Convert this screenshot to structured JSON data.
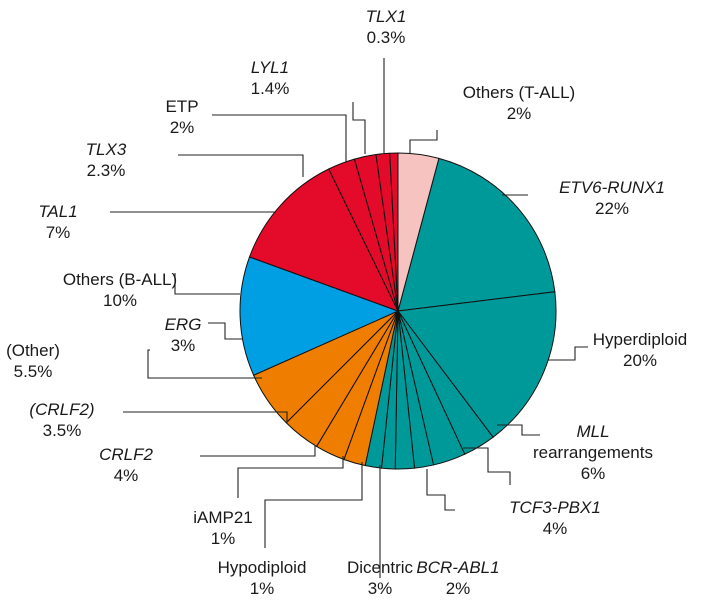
{
  "chart_data": {
    "type": "pie",
    "colors": {
      "teal": "#009999",
      "orange": "#ef7d00",
      "blue": "#009fe3",
      "red": "#e30a2a",
      "pink": "#f6c3c0"
    },
    "slices": [
      {
        "id": "etv6",
        "name": "ETV6-RUNX1",
        "value": 22,
        "pct": "22%",
        "color": "#009999",
        "italic": true
      },
      {
        "id": "hyper",
        "name": "Hyperdiploid",
        "value": 20,
        "pct": "20%",
        "color": "#009999",
        "italic": false
      },
      {
        "id": "mll",
        "name": "MLL",
        "name2": "rearrangements",
        "value": 6,
        "pct": "6%",
        "color": "#009999",
        "italic": true
      },
      {
        "id": "tcf3",
        "name": "TCF3-PBX1",
        "value": 4,
        "pct": "4%",
        "color": "#009999",
        "italic": true
      },
      {
        "id": "bcr",
        "name": "BCR-ABL1",
        "value": 2,
        "pct": "2%",
        "color": "#009999",
        "italic": true
      },
      {
        "id": "dicentric",
        "name": "Dicentric",
        "value": 3,
        "pct": "3%",
        "color": "#009999",
        "italic": false
      },
      {
        "id": "hypodiploid",
        "name": "Hypodiploid",
        "value": 1,
        "pct": "1%",
        "color": "#009999",
        "italic": false
      },
      {
        "id": "iamp21",
        "name": "iAMP21",
        "value": 1,
        "pct": "1%",
        "color": "#009999",
        "italic": false
      },
      {
        "id": "crlf2",
        "name": "CRLF2",
        "value": 4,
        "pct": "4%",
        "color": "#ef7d00",
        "italic": true
      },
      {
        "id": "crlf2p",
        "name": "(CRLF2)",
        "value": 3.5,
        "pct": "3.5%",
        "color": "#ef7d00",
        "italic": true
      },
      {
        "id": "other",
        "name": "(Other)",
        "value": 5.5,
        "pct": "5.5%",
        "color": "#ef7d00",
        "italic": false
      },
      {
        "id": "erg",
        "name": "ERG",
        "value": 3,
        "pct": "3%",
        "color": "#ef7d00",
        "italic": true
      },
      {
        "id": "ball",
        "name": "Others (B-ALL)",
        "value": 10,
        "pct": "10%",
        "color": "#009fe3",
        "italic": false
      },
      {
        "id": "tal1",
        "name": "TAL1",
        "value": 7,
        "pct": "7%",
        "color": "#e30a2a",
        "italic": true
      },
      {
        "id": "tlx3",
        "name": "TLX3",
        "value": 2.3,
        "pct": "2.3%",
        "color": "#e30a2a",
        "italic": true
      },
      {
        "id": "etp",
        "name": "ETP",
        "value": 2,
        "pct": "2%",
        "color": "#e30a2a",
        "italic": false
      },
      {
        "id": "lyl1",
        "name": "LYL1",
        "value": 1.4,
        "pct": "1.4%",
        "color": "#e30a2a",
        "italic": true
      },
      {
        "id": "tlx1",
        "name": "TLX1",
        "value": 0.3,
        "pct": "0.3%",
        "color": "#e30a2a",
        "italic": true
      },
      {
        "id": "tall",
        "name": "Others (T-ALL)",
        "value": 2,
        "pct": "2%",
        "color": "#f6c3c0",
        "italic": false
      }
    ]
  }
}
